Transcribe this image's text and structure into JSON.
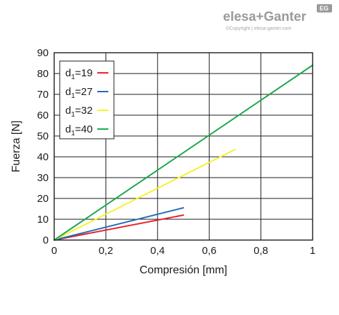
{
  "brand": {
    "name": "elesa+Ganter",
    "copyright": "©Copyright | elesa-ganter.com",
    "badge": "EG"
  },
  "chart_data": {
    "type": "line",
    "title": "",
    "xlabel": "Compresión [mm]",
    "ylabel": "Fuerza [N]",
    "xlim": [
      0,
      1
    ],
    "ylim": [
      0,
      90
    ],
    "x_ticks": [
      0,
      0.2,
      0.4,
      0.6,
      0.8,
      1
    ],
    "x_tick_labels": [
      "0",
      "0,2",
      "0,4",
      "0,6",
      "0,8",
      "1"
    ],
    "y_ticks": [
      0,
      10,
      20,
      30,
      40,
      50,
      60,
      70,
      80,
      90
    ],
    "y_tick_labels": [
      "0",
      "10",
      "20",
      "30",
      "40",
      "50",
      "60",
      "70",
      "80",
      "90"
    ],
    "grid": true,
    "legend_position": "top-left",
    "series": [
      {
        "name": "d1=19",
        "label_main": "d",
        "label_sub": "1",
        "label_rest": "=19",
        "color": "#e8202a",
        "x": [
          0,
          0.5
        ],
        "y": [
          0,
          12
        ]
      },
      {
        "name": "d1=27",
        "label_main": "d",
        "label_sub": "1",
        "label_rest": "=27",
        "color": "#1f6bb5",
        "x": [
          0,
          0.5
        ],
        "y": [
          0,
          15.5
        ]
      },
      {
        "name": "d1=32",
        "label_main": "d",
        "label_sub": "1",
        "label_rest": "=32",
        "color": "#f5f22a",
        "x": [
          0,
          0.7
        ],
        "y": [
          0,
          43.5
        ]
      },
      {
        "name": "d1=40",
        "label_main": "d",
        "label_sub": "1",
        "label_rest": "=40",
        "color": "#1aa84a",
        "x": [
          0,
          1
        ],
        "y": [
          0,
          84
        ]
      }
    ]
  }
}
